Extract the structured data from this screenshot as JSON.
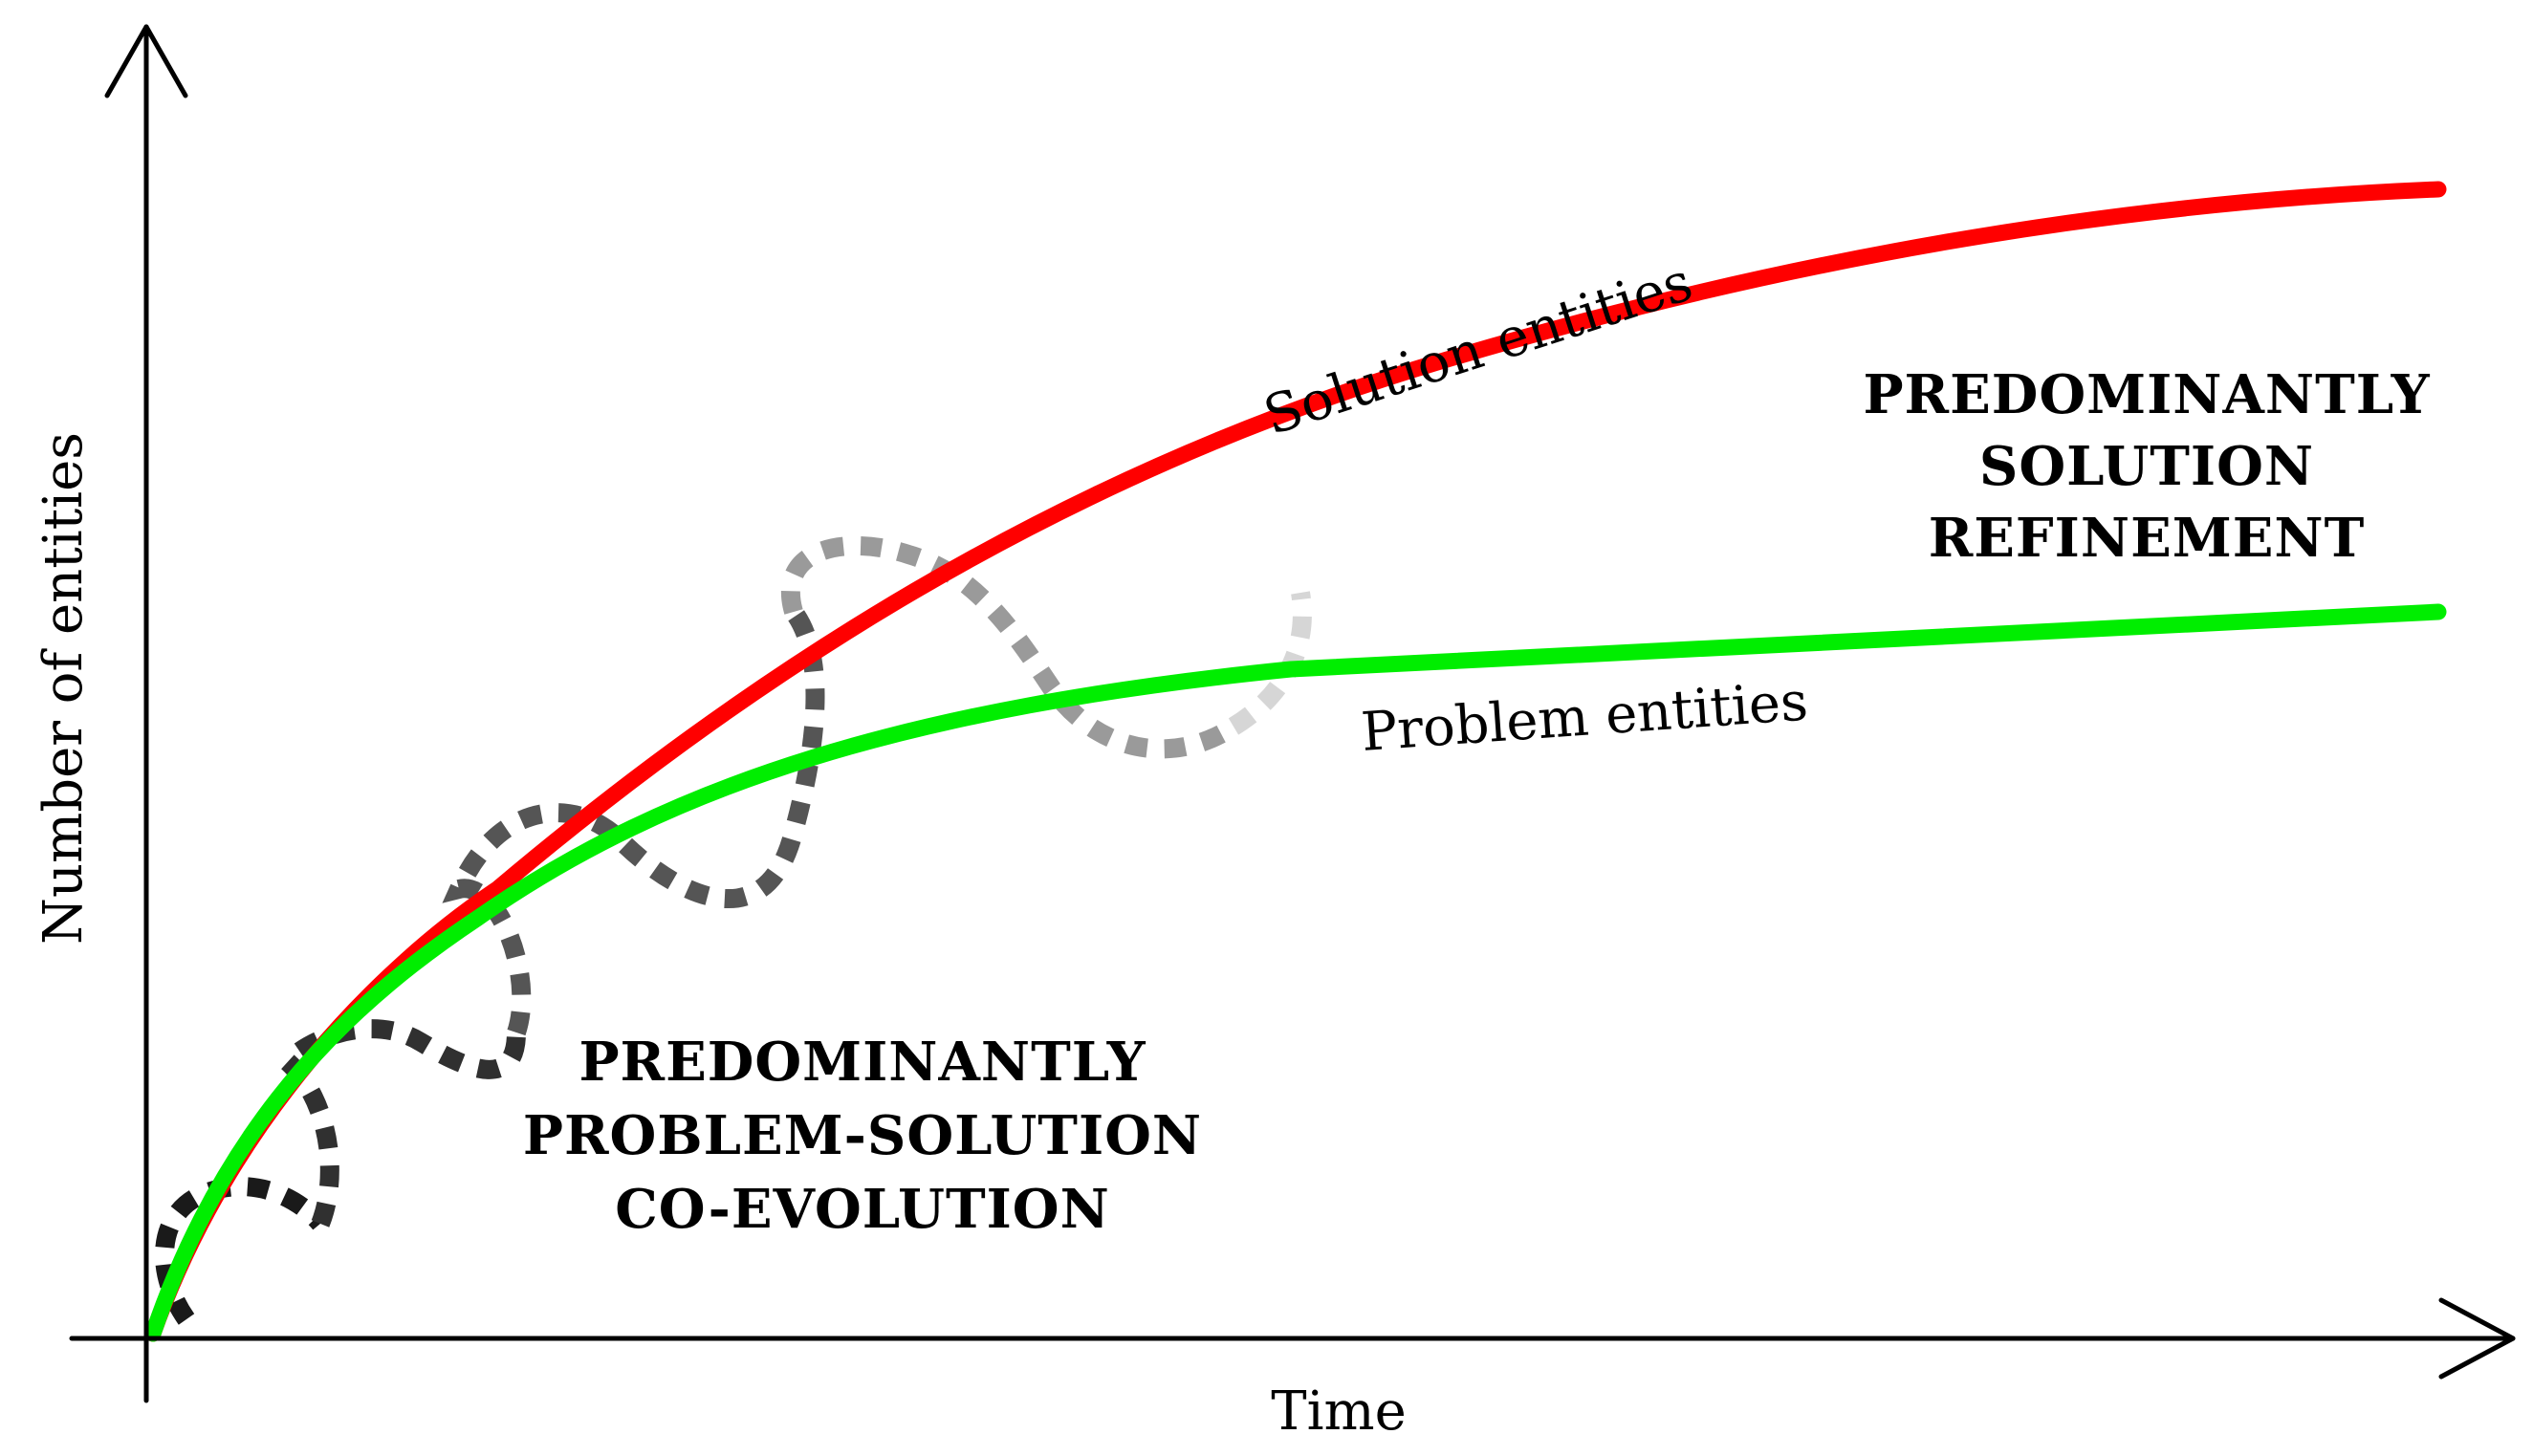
{
  "axes": {
    "x_label": "Time",
    "y_label": "Number of entities",
    "color": "#000000"
  },
  "curves": {
    "solution": {
      "label": "Solution entities",
      "color": "#ff0000"
    },
    "problem": {
      "label": "Problem entities",
      "color": "#00ee00"
    }
  },
  "phases": {
    "coevolution": {
      "lines": [
        "PREDOMINANTLY",
        "PROBLEM-SOLUTION",
        "CO-EVOLUTION"
      ]
    },
    "refinement": {
      "lines": [
        "PREDOMINANTLY",
        "SOLUTION",
        "REFINEMENT"
      ]
    }
  },
  "spiral": {
    "style": "dotted loops fading from dark to light along the curves",
    "shades": [
      "#1a1a1a",
      "#303030",
      "#555555",
      "#9a9a9a",
      "#d6d6d6"
    ]
  }
}
